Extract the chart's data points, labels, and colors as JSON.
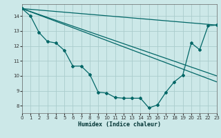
{
  "xlabel": "Humidex (Indice chaleur)",
  "background_color": "#cce8e8",
  "grid_color": "#aacccc",
  "line_color": "#006666",
  "xlim": [
    0,
    23
  ],
  "ylim": [
    7.5,
    14.8
  ],
  "yticks": [
    8,
    9,
    10,
    11,
    12,
    13,
    14
  ],
  "xticks": [
    0,
    1,
    2,
    3,
    4,
    5,
    6,
    7,
    8,
    9,
    10,
    11,
    12,
    13,
    14,
    15,
    16,
    17,
    18,
    19,
    20,
    21,
    22,
    23
  ],
  "lines": [
    {
      "x": [
        0,
        1,
        2,
        3,
        4,
        5,
        6,
        7,
        8,
        9,
        10,
        11,
        12,
        13,
        14,
        15,
        16,
        17,
        18,
        19,
        20,
        21,
        22,
        23
      ],
      "y": [
        14.5,
        14.0,
        12.9,
        12.3,
        12.2,
        11.7,
        10.65,
        10.65,
        10.1,
        8.9,
        8.85,
        8.55,
        8.5,
        8.5,
        8.5,
        7.85,
        8.05,
        8.9,
        9.6,
        10.05,
        12.2,
        11.75,
        13.35,
        13.4
      ],
      "marker": "D",
      "markersize": 2.0,
      "linewidth": 0.9,
      "linestyle": "-"
    },
    {
      "x": [
        0,
        23
      ],
      "y": [
        14.5,
        13.4
      ],
      "marker": null,
      "markersize": 0,
      "linewidth": 0.9,
      "linestyle": "-"
    },
    {
      "x": [
        0,
        23
      ],
      "y": [
        14.5,
        10.0
      ],
      "marker": null,
      "markersize": 0,
      "linewidth": 0.9,
      "linestyle": "-"
    },
    {
      "x": [
        0,
        23
      ],
      "y": [
        14.5,
        9.6
      ],
      "marker": null,
      "markersize": 0,
      "linewidth": 0.9,
      "linestyle": "-"
    }
  ]
}
